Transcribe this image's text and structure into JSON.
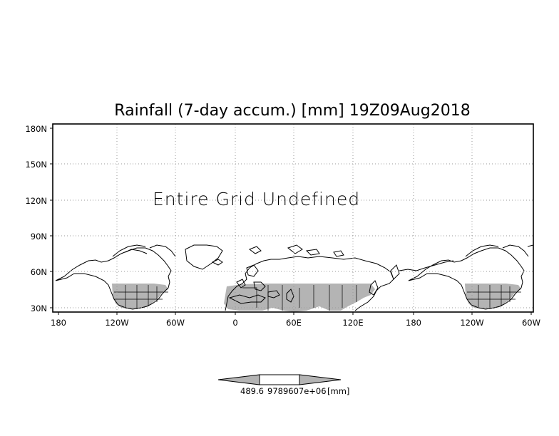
{
  "title": "Rainfall (7-day accum.) [mm] 19Z09Aug2018",
  "overlay_message": "Entire Grid Undefined",
  "axes": {
    "y_ticks": [
      "180N",
      "150N",
      "120N",
      "90N",
      "60N",
      "30N"
    ],
    "x_ticks": [
      "180",
      "120W",
      "60W",
      "0",
      "60E",
      "120E",
      "180",
      "120W",
      "60W"
    ]
  },
  "colorbar": {
    "label_low": "489.6",
    "label_high": "9789607e+06",
    "unit": "[mm]",
    "colors": {
      "left": "#b4b4b4",
      "middle": "#ffffff",
      "right": "#b4b4b4"
    }
  },
  "colors": {
    "land_masked": "#b4b4b4",
    "grid": "#9a9a9a",
    "coast": "#000000",
    "frame": "#000000"
  },
  "map": {
    "projection": "latlon",
    "lon_range": [
      -180,
      300
    ],
    "lat_range": [
      28,
      180
    ],
    "gridlines": "dotted",
    "shaded_region": "30N-50N land (NA, Europe, Asia)"
  }
}
